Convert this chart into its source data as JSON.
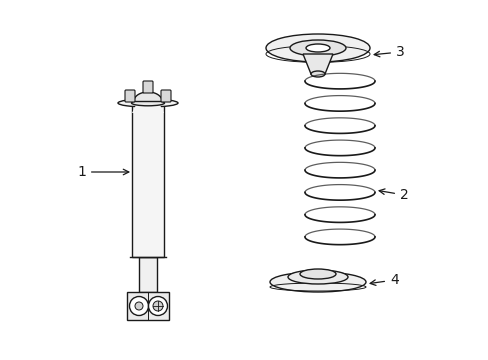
{
  "bg_color": "#ffffff",
  "line_color": "#1a1a1a",
  "line_width": 1.0,
  "label_fontsize": 10,
  "figsize": [
    4.89,
    3.6
  ],
  "dpi": 100
}
